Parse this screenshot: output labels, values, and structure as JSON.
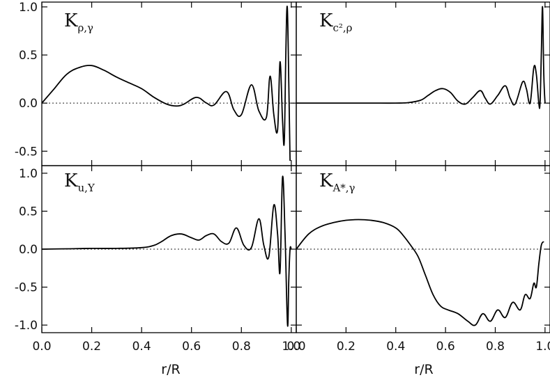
{
  "chart_data": [
    {
      "type": "line",
      "panel": "top-left",
      "label_main": "K",
      "label_sub": "ρ,γ",
      "xlim": [
        0.0,
        1.02
      ],
      "ylim": [
        -0.65,
        1.05
      ],
      "yticks": [
        "1.0",
        "0.5",
        "0.0",
        "-0.5"
      ],
      "ytick_values": [
        1.0,
        0.5,
        0.0,
        -0.5
      ],
      "x": [
        0.0,
        0.05,
        0.1,
        0.15,
        0.2,
        0.25,
        0.3,
        0.35,
        0.4,
        0.45,
        0.5,
        0.54,
        0.57,
        0.62,
        0.66,
        0.69,
        0.74,
        0.77,
        0.8,
        0.84,
        0.87,
        0.9,
        0.915,
        0.93,
        0.945,
        0.955,
        0.965,
        0.972,
        0.978,
        0.984,
        0.99,
        0.995
      ],
      "y": [
        0.0,
        0.15,
        0.3,
        0.37,
        0.39,
        0.34,
        0.27,
        0.21,
        0.15,
        0.06,
        -0.01,
        -0.03,
        -0.01,
        0.06,
        0.0,
        -0.02,
        0.12,
        -0.07,
        -0.12,
        0.19,
        -0.08,
        -0.15,
        0.28,
        -0.12,
        -0.28,
        0.43,
        -0.18,
        -0.4,
        0.5,
        1.0,
        0.2,
        -0.6
      ]
    },
    {
      "type": "line",
      "panel": "top-right",
      "label_main": "K",
      "label_sub": "c²,ρ",
      "xlim": [
        0.0,
        1.02
      ],
      "ylim": [
        -0.65,
        1.05
      ],
      "x": [
        0.0,
        0.1,
        0.2,
        0.3,
        0.4,
        0.45,
        0.5,
        0.53,
        0.56,
        0.59,
        0.62,
        0.65,
        0.68,
        0.71,
        0.74,
        0.76,
        0.78,
        0.81,
        0.84,
        0.86,
        0.88,
        0.91,
        0.925,
        0.94,
        0.955,
        0.965,
        0.975,
        0.98,
        0.985,
        0.99,
        0.995,
        1.0
      ],
      "y": [
        0.0,
        0.0,
        0.0,
        0.0,
        0.0,
        0.005,
        0.03,
        0.08,
        0.13,
        0.15,
        0.11,
        0.02,
        -0.01,
        0.06,
        0.13,
        0.05,
        -0.01,
        0.08,
        0.18,
        0.05,
        -0.01,
        0.22,
        0.15,
        0.0,
        0.37,
        0.3,
        0.0,
        0.0,
        0.5,
        1.0,
        0.3,
        0.0
      ]
    },
    {
      "type": "line",
      "panel": "bottom-left",
      "label_main": "K",
      "label_sub": "u,Y",
      "xlim": [
        0.0,
        1.02
      ],
      "ylim": [
        -1.1,
        1.1
      ],
      "yticks": [
        "1.0",
        "0.5",
        "0.0",
        "-0.5",
        "-1.0"
      ],
      "ytick_values": [
        1.0,
        0.5,
        0.0,
        -0.5,
        -1.0
      ],
      "x": [
        0.0,
        0.1,
        0.2,
        0.3,
        0.4,
        0.45,
        0.48,
        0.52,
        0.56,
        0.6,
        0.63,
        0.66,
        0.69,
        0.72,
        0.75,
        0.78,
        0.81,
        0.84,
        0.87,
        0.89,
        0.91,
        0.93,
        0.945,
        0.955,
        0.965,
        0.975,
        0.985,
        0.99,
        0.995,
        1.0
      ],
      "y": [
        0.0,
        0.005,
        0.01,
        0.01,
        0.02,
        0.05,
        0.1,
        0.18,
        0.2,
        0.15,
        0.12,
        0.18,
        0.2,
        0.1,
        0.08,
        0.28,
        0.05,
        0.02,
        0.4,
        0.05,
        -0.1,
        0.58,
        0.2,
        -0.3,
        0.95,
        0.2,
        -1.0,
        -0.4,
        0.0,
        0.0
      ]
    },
    {
      "type": "line",
      "panel": "bottom-right",
      "label_main": "K",
      "label_sub": "A*,γ",
      "xlim": [
        0.0,
        1.02
      ],
      "ylim": [
        -1.1,
        1.1
      ],
      "x": [
        0.0,
        0.05,
        0.1,
        0.15,
        0.2,
        0.25,
        0.3,
        0.35,
        0.4,
        0.43,
        0.46,
        0.49,
        0.52,
        0.55,
        0.58,
        0.61,
        0.65,
        0.69,
        0.72,
        0.75,
        0.78,
        0.81,
        0.84,
        0.87,
        0.9,
        0.92,
        0.94,
        0.955,
        0.965,
        0.975,
        0.985,
        0.995
      ],
      "y": [
        0.0,
        0.2,
        0.3,
        0.35,
        0.38,
        0.39,
        0.38,
        0.35,
        0.28,
        0.18,
        0.05,
        -0.1,
        -0.35,
        -0.6,
        -0.75,
        -0.8,
        -0.85,
        -0.95,
        -1.0,
        -0.85,
        -0.95,
        -0.8,
        -0.9,
        -0.7,
        -0.8,
        -0.6,
        -0.65,
        -0.45,
        -0.5,
        -0.2,
        0.05,
        0.1
      ]
    }
  ],
  "axes": {
    "xticks": [
      "0.0",
      "0.2",
      "0.4",
      "0.6",
      "0.8",
      "1.0"
    ],
    "xtick_values": [
      0.0,
      0.2,
      0.4,
      0.6,
      0.8,
      1.0
    ],
    "xlabel": "r/R"
  }
}
